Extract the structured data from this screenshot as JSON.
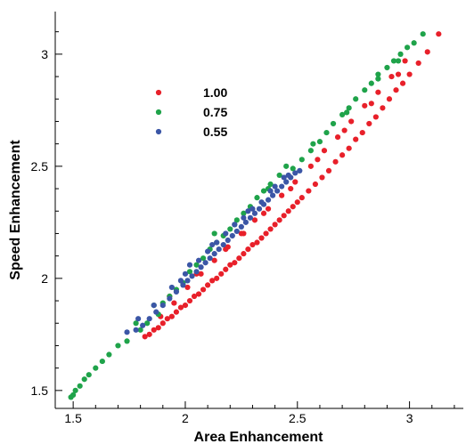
{
  "chart_data": {
    "type": "scatter",
    "title": "",
    "xlabel": "Area Enhancement",
    "ylabel": "Speed Enhancement",
    "xlim": [
      1.42,
      3.24
    ],
    "ylim": [
      1.42,
      3.19
    ],
    "x_ticks": [
      1.5,
      2,
      2.5,
      3
    ],
    "x_tick_labels": [
      "1.5",
      "2",
      "2.5",
      "3"
    ],
    "y_ticks": [
      1.5,
      2,
      2.5,
      3
    ],
    "y_tick_labels": [
      "1.5",
      "2",
      "2.5",
      "3"
    ],
    "grid": false,
    "legend_position": "upper-left",
    "series": [
      {
        "name": "1.00",
        "color": "#e8202a",
        "points": [
          [
            1.82,
            1.74
          ],
          [
            1.84,
            1.75
          ],
          [
            1.86,
            1.77
          ],
          [
            1.88,
            1.78
          ],
          [
            1.9,
            1.8
          ],
          [
            1.92,
            1.82
          ],
          [
            1.94,
            1.83
          ],
          [
            1.96,
            1.85
          ],
          [
            1.98,
            1.87
          ],
          [
            2.0,
            1.88
          ],
          [
            2.02,
            1.9
          ],
          [
            2.04,
            1.92
          ],
          [
            2.06,
            1.93
          ],
          [
            2.08,
            1.95
          ],
          [
            2.1,
            1.97
          ],
          [
            2.12,
            1.99
          ],
          [
            2.14,
            2.0
          ],
          [
            2.16,
            2.02
          ],
          [
            2.18,
            2.04
          ],
          [
            2.2,
            2.06
          ],
          [
            2.22,
            2.07
          ],
          [
            2.24,
            2.09
          ],
          [
            2.26,
            2.11
          ],
          [
            2.28,
            2.13
          ],
          [
            2.3,
            2.15
          ],
          [
            2.32,
            2.16
          ],
          [
            2.34,
            2.18
          ],
          [
            2.36,
            2.2
          ],
          [
            2.38,
            2.22
          ],
          [
            2.4,
            2.24
          ],
          [
            2.42,
            2.26
          ],
          [
            2.44,
            2.28
          ],
          [
            2.46,
            2.3
          ],
          [
            2.48,
            2.32
          ],
          [
            2.5,
            2.34
          ],
          [
            2.52,
            2.36
          ],
          [
            2.55,
            2.39
          ],
          [
            2.58,
            2.42
          ],
          [
            2.61,
            2.45
          ],
          [
            2.64,
            2.48
          ],
          [
            2.67,
            2.52
          ],
          [
            2.7,
            2.55
          ],
          [
            2.73,
            2.58
          ],
          [
            2.76,
            2.62
          ],
          [
            2.79,
            2.65
          ],
          [
            2.82,
            2.69
          ],
          [
            2.85,
            2.72
          ],
          [
            2.88,
            2.76
          ],
          [
            2.91,
            2.8
          ],
          [
            2.94,
            2.84
          ],
          [
            2.97,
            2.87
          ],
          [
            3.0,
            2.91
          ],
          [
            3.04,
            2.96
          ],
          [
            3.08,
            3.01
          ],
          [
            3.13,
            3.09
          ],
          [
            1.89,
            1.83
          ],
          [
            1.95,
            1.89
          ],
          [
            2.01,
            1.96
          ],
          [
            2.07,
            2.02
          ],
          [
            2.13,
            2.08
          ],
          [
            2.19,
            2.14
          ],
          [
            2.25,
            2.2
          ],
          [
            2.31,
            2.26
          ],
          [
            2.37,
            2.31
          ],
          [
            2.43,
            2.37
          ],
          [
            2.49,
            2.43
          ],
          [
            2.56,
            2.5
          ],
          [
            2.62,
            2.57
          ],
          [
            2.68,
            2.63
          ],
          [
            2.74,
            2.7
          ],
          [
            2.8,
            2.77
          ],
          [
            2.86,
            2.83
          ],
          [
            2.92,
            2.9
          ],
          [
            2.98,
            2.97
          ],
          [
            1.93,
            1.92
          ],
          [
            2.05,
            2.02
          ],
          [
            2.18,
            2.13
          ],
          [
            2.26,
            2.2
          ],
          [
            2.35,
            2.29
          ],
          [
            2.47,
            2.4
          ],
          [
            2.59,
            2.53
          ],
          [
            2.71,
            2.66
          ],
          [
            2.83,
            2.78
          ],
          [
            2.95,
            2.91
          ]
        ]
      },
      {
        "name": "0.75",
        "color": "#1fa34a",
        "points": [
          [
            1.49,
            1.47
          ],
          [
            1.5,
            1.48
          ],
          [
            1.51,
            1.5
          ],
          [
            1.53,
            1.52
          ],
          [
            1.55,
            1.55
          ],
          [
            1.57,
            1.57
          ],
          [
            1.6,
            1.6
          ],
          [
            1.63,
            1.63
          ],
          [
            1.66,
            1.66
          ],
          [
            1.7,
            1.7
          ],
          [
            1.74,
            1.72
          ],
          [
            1.78,
            1.8
          ],
          [
            1.8,
            1.77
          ],
          [
            1.83,
            1.8
          ],
          [
            1.86,
            1.88
          ],
          [
            1.88,
            1.84
          ],
          [
            1.9,
            1.89
          ],
          [
            1.93,
            1.92
          ],
          [
            1.96,
            1.95
          ],
          [
            1.99,
            1.98
          ],
          [
            2.02,
            2.03
          ],
          [
            2.05,
            2.06
          ],
          [
            2.08,
            2.09
          ],
          [
            2.11,
            2.13
          ],
          [
            2.14,
            2.16
          ],
          [
            2.17,
            2.19
          ],
          [
            2.2,
            2.22
          ],
          [
            2.23,
            2.26
          ],
          [
            2.26,
            2.29
          ],
          [
            2.29,
            2.32
          ],
          [
            2.32,
            2.36
          ],
          [
            2.35,
            2.39
          ],
          [
            2.38,
            2.42
          ],
          [
            2.42,
            2.46
          ],
          [
            2.45,
            2.5
          ],
          [
            2.48,
            2.49
          ],
          [
            2.52,
            2.53
          ],
          [
            2.56,
            2.57
          ],
          [
            2.6,
            2.61
          ],
          [
            2.63,
            2.65
          ],
          [
            2.66,
            2.69
          ],
          [
            2.7,
            2.73
          ],
          [
            2.73,
            2.76
          ],
          [
            2.76,
            2.8
          ],
          [
            2.8,
            2.84
          ],
          [
            2.83,
            2.87
          ],
          [
            2.86,
            2.91
          ],
          [
            2.9,
            2.94
          ],
          [
            2.93,
            2.97
          ],
          [
            2.96,
            3.0
          ],
          [
            2.99,
            3.03
          ],
          [
            3.02,
            3.05
          ],
          [
            3.06,
            3.09
          ],
          [
            2.13,
            2.2
          ],
          [
            2.22,
            2.24
          ],
          [
            2.37,
            2.4
          ],
          [
            2.57,
            2.6
          ],
          [
            2.72,
            2.74
          ],
          [
            2.86,
            2.89
          ],
          [
            2.95,
            2.97
          ]
        ]
      },
      {
        "name": "0.55",
        "color": "#3b56a6",
        "points": [
          [
            1.74,
            1.76
          ],
          [
            1.78,
            1.77
          ],
          [
            1.81,
            1.79
          ],
          [
            1.84,
            1.82
          ],
          [
            1.87,
            1.85
          ],
          [
            1.9,
            1.88
          ],
          [
            1.93,
            1.91
          ],
          [
            1.96,
            1.94
          ],
          [
            1.99,
            1.97
          ],
          [
            2.01,
            1.99
          ],
          [
            2.03,
            2.01
          ],
          [
            2.05,
            2.03
          ],
          [
            2.07,
            2.05
          ],
          [
            2.09,
            2.07
          ],
          [
            2.11,
            2.09
          ],
          [
            2.13,
            2.11
          ],
          [
            2.15,
            2.13
          ],
          [
            2.17,
            2.15
          ],
          [
            2.19,
            2.17
          ],
          [
            2.21,
            2.19
          ],
          [
            2.23,
            2.21
          ],
          [
            2.25,
            2.23
          ],
          [
            2.27,
            2.25
          ],
          [
            2.29,
            2.27
          ],
          [
            2.31,
            2.29
          ],
          [
            2.33,
            2.31
          ],
          [
            2.35,
            2.33
          ],
          [
            2.37,
            2.35
          ],
          [
            2.39,
            2.37
          ],
          [
            2.41,
            2.39
          ],
          [
            2.43,
            2.41
          ],
          [
            2.45,
            2.43
          ],
          [
            2.47,
            2.45
          ],
          [
            2.49,
            2.47
          ],
          [
            2.51,
            2.48
          ],
          [
            1.94,
            1.96
          ],
          [
            1.98,
            1.99
          ],
          [
            2.06,
            2.08
          ],
          [
            2.14,
            2.16
          ],
          [
            2.22,
            2.24
          ],
          [
            2.3,
            2.31
          ],
          [
            2.38,
            2.39
          ],
          [
            2.44,
            2.45
          ],
          [
            2.02,
            2.06
          ],
          [
            2.1,
            2.12
          ],
          [
            2.18,
            2.2
          ],
          [
            2.26,
            2.27
          ],
          [
            2.34,
            2.34
          ],
          [
            2.46,
            2.46
          ],
          [
            1.86,
            1.88
          ],
          [
            1.79,
            1.82
          ],
          [
            2.0,
            2.02
          ],
          [
            2.12,
            2.15
          ],
          [
            2.28,
            2.3
          ],
          [
            2.4,
            2.41
          ]
        ]
      }
    ]
  }
}
